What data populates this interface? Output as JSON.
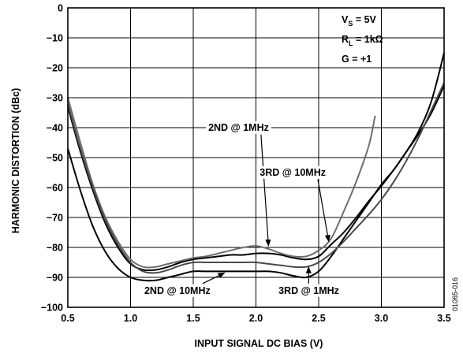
{
  "chart_data": {
    "type": "line",
    "xlabel": "INPUT SIGNAL DC BIAS (V)",
    "ylabel": "HARMONIC DISTORTION (dBc)",
    "xlim": [
      0.5,
      3.5
    ],
    "ylim": [
      -100,
      0
    ],
    "xticks": [
      "0.5",
      "1.0",
      "1.5",
      "2.0",
      "2.5",
      "3.0",
      "3.5"
    ],
    "yticks": [
      "0",
      "−10",
      "−20",
      "−30",
      "−40",
      "−50",
      "−60",
      "−70",
      "−80",
      "−90",
      "−100"
    ],
    "grid": true,
    "conditions": {
      "vs_label": "V",
      "vs_sub": "S",
      "vs_value": " = 5V",
      "rl_label": "R",
      "rl_sub": "L",
      "rl_value": " = 1kΩ",
      "gain": "G = +1"
    },
    "figure_id": "01065-016",
    "series": [
      {
        "name": "2ND @ 1MHz",
        "color": "#000000",
        "x": [
          0.5,
          0.6,
          0.7,
          0.8,
          0.9,
          1.0,
          1.1,
          1.2,
          1.3,
          1.4,
          1.5,
          1.6,
          1.7,
          1.8,
          1.9,
          2.0,
          2.1,
          2.2,
          2.3,
          2.4,
          2.5,
          2.6,
          2.7,
          2.8,
          2.9,
          3.0,
          3.1,
          3.2,
          3.3,
          3.4,
          3.5
        ],
        "values": [
          -33,
          -48,
          -61,
          -72,
          -80,
          -85.5,
          -87.5,
          -87.5,
          -86.5,
          -85,
          -84,
          -83.5,
          -83,
          -82.5,
          -82.5,
          -82,
          -82,
          -82.5,
          -83.5,
          -84,
          -83,
          -79,
          -75,
          -70,
          -64.5,
          -59.5,
          -54,
          -48,
          -41,
          -31,
          -15
        ]
      },
      {
        "name": "3RD @ 10MHz",
        "color": "#6e6e6e",
        "x": [
          0.5,
          0.6,
          0.7,
          0.8,
          0.9,
          1.0,
          1.1,
          1.2,
          1.3,
          1.4,
          1.5,
          1.6,
          1.7,
          1.8,
          1.9,
          2.0,
          2.1,
          2.2,
          2.3,
          2.4,
          2.5,
          2.6,
          2.7,
          2.8,
          2.9,
          2.95
        ],
        "values": [
          -30,
          -45,
          -59,
          -70,
          -78,
          -84,
          -86.5,
          -86.5,
          -85.5,
          -84.5,
          -83.5,
          -83,
          -82,
          -81,
          -80,
          -79.5,
          -80.5,
          -82,
          -83,
          -83,
          -81,
          -77,
          -68,
          -58,
          -46,
          -36
        ]
      },
      {
        "name": "2ND @ 10MHz",
        "color": "#000000",
        "x": [
          0.5,
          0.6,
          0.7,
          0.8,
          0.9,
          1.0,
          1.1,
          1.2,
          1.3,
          1.4,
          1.5,
          1.6,
          1.7,
          1.8,
          1.9,
          2.0,
          2.1,
          2.2,
          2.3,
          2.4,
          2.5,
          2.6,
          2.7,
          2.8,
          2.9,
          3.0,
          3.1,
          3.2,
          3.3,
          3.4,
          3.5
        ],
        "values": [
          -47,
          -61,
          -73,
          -81.5,
          -87,
          -90,
          -91,
          -91,
          -90,
          -89,
          -88,
          -88,
          -88,
          -88,
          -88,
          -88,
          -88,
          -88.5,
          -89.5,
          -90,
          -88,
          -83,
          -77,
          -71,
          -65,
          -59,
          -54,
          -48,
          -42,
          -35,
          -26
        ]
      },
      {
        "name": "3RD @ 1MHz",
        "color": "#4a4a4a",
        "x": [
          0.5,
          0.6,
          0.7,
          0.8,
          0.9,
          1.0,
          1.1,
          1.2,
          1.3,
          1.4,
          1.5,
          1.6,
          1.7,
          1.8,
          1.9,
          2.0,
          2.1,
          2.2,
          2.3,
          2.4,
          2.5,
          2.6,
          2.7,
          2.8,
          2.9,
          3.0,
          3.1,
          3.2,
          3.3,
          3.4,
          3.5
        ],
        "values": [
          -32,
          -47,
          -60,
          -71,
          -79,
          -85,
          -88,
          -88.5,
          -87.5,
          -86,
          -85,
          -85,
          -85,
          -85,
          -85,
          -85,
          -85.5,
          -86,
          -86.5,
          -86.5,
          -85,
          -82,
          -78,
          -73.5,
          -69,
          -64,
          -58,
          -51,
          -43,
          -34,
          -25
        ]
      }
    ],
    "annotations": [
      {
        "label": "2ND @ 1MHz",
        "x": 1.62,
        "y": -41,
        "arrow_to_x": 2.1,
        "arrow_to_y": -79.5
      },
      {
        "label": "3RD @ 10MHz",
        "x": 2.03,
        "y": -56,
        "arrow_to_x": 2.58,
        "arrow_to_y": -78
      },
      {
        "label": "2ND @ 10MHz",
        "x": 1.11,
        "y": -95.5,
        "arrow_to_x": 1.75,
        "arrow_to_y": -88.5
      },
      {
        "label": "3RD @ 1MHz",
        "x": 2.18,
        "y": -95.5,
        "arrow_to_x": 2.42,
        "arrow_to_y": -86.5
      }
    ]
  }
}
